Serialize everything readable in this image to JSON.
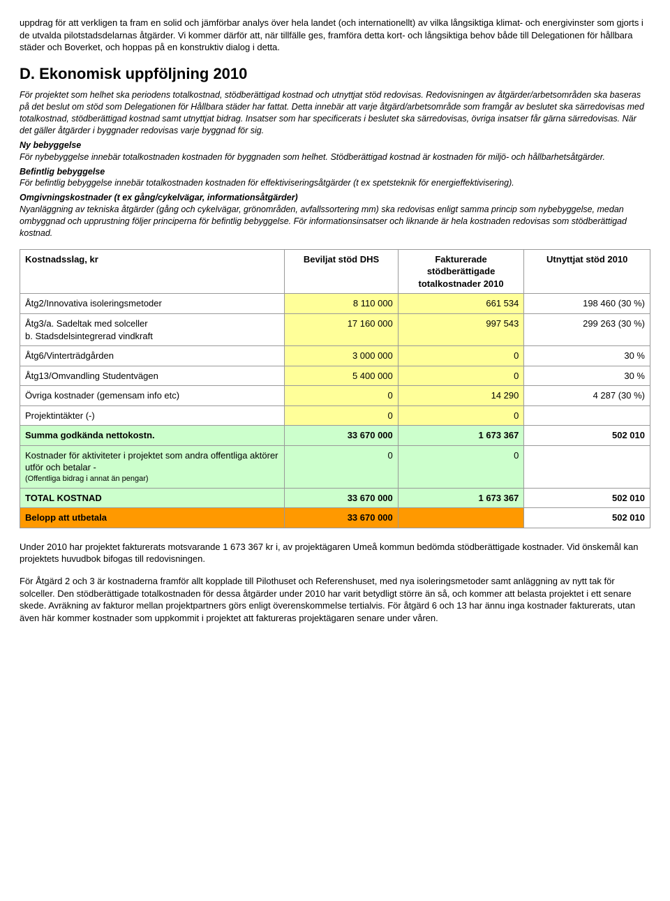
{
  "p1": "uppdrag för att verkligen ta fram en solid och jämförbar analys över hela landet (och internationellt) av vilka långsiktiga klimat- och energivinster som gjorts i de utvalda pilotstadsdelarnas åtgärder. Vi kommer därför att, när tillfälle ges, framföra detta kort- och långsiktiga behov både till Delegationen för hållbara städer och Boverket, och hoppas på en konstruktiv dialog i detta.",
  "section_title": "D. Ekonomisk uppföljning 2010",
  "i1": "För projektet som helhet ska periodens totalkostnad, stödberättigad kostnad och utnyttjat stöd redovisas. Redovisningen av åtgärder/arbetsområden ska baseras på det beslut om stöd som Delegationen för Hållbara städer har fattat. Detta innebär att varje åtgärd/arbetsområde som framgår av beslutet ska särredovisas med totalkostnad, stödberättigad kostnad samt utnyttjat bidrag. Insatser som har specificerats i beslutet ska särredovisas, övriga insatser får gärna särredovisas. När det gäller åtgärder i byggnader redovisas varje byggnad för sig.",
  "i2_h": "Ny bebyggelse",
  "i2": "För nybebyggelse innebär totalkostnaden kostnaden för byggnaden som helhet. Stödberättigad kostnad är kostnaden för miljö- och hållbarhetsåtgärder.",
  "i3_h": "Befintlig bebyggelse",
  "i3": "För befintlig bebyggelse innebär totalkostnaden kostnaden för effektiviseringsåtgärder (t ex spetsteknik för energieffektivisering).",
  "i4_h": "Omgivningskostnader (t ex gång/cykelvägar, informationsåtgärder)",
  "i4": "Nyanläggning av tekniska åtgärder (gång och cykelvägar, grönområden, avfallssortering mm) ska redovisas enligt samma princip som nybebyggelse, medan ombyggnad och upprustning följer principerna för befintlig bebyggelse. För informationsinsatser och liknande är hela kostnaden redovisas som stödberättigad kostnad.",
  "table": {
    "headers": {
      "c1": "Kostnadsslag, kr",
      "c2": "Beviljat stöd DHS",
      "c3": "Fakturerade stödberättigade totalkostnader 2010",
      "c4": "Utnyttjat stöd 2010"
    },
    "rows": [
      {
        "label": "Åtg2/Innovativa isoleringsmetoder",
        "dhs": "8 110 000",
        "fakt": "661 534",
        "stod": "198 460 (30 %)",
        "color": "yellow"
      },
      {
        "label": "Åtg3/a. Sadeltak med solceller\nb. Stadsdelsintegrerad vindkraft",
        "dhs": "17 160 000",
        "fakt": "997 543",
        "stod": "299 263 (30 %)",
        "color": "yellow"
      },
      {
        "label": "Åtg6/Vinterträdgården",
        "dhs": "3 000 000",
        "fakt": "0",
        "stod": "30 %",
        "color": "yellow"
      },
      {
        "label": "Åtg13/Omvandling Studentvägen",
        "dhs": "5 400 000",
        "fakt": "0",
        "stod": "30 %",
        "color": "yellow"
      },
      {
        "label": "Övriga kostnader (gemensam info etc)",
        "dhs": "0",
        "fakt": "14 290",
        "stod": "4 287 (30 %)",
        "color": "yellow"
      },
      {
        "label": "Projektintäkter (-)",
        "dhs": "0",
        "fakt": "0",
        "stod": "",
        "color": "yellow"
      }
    ],
    "summa": {
      "label": "Summa godkända nettokostn.",
      "dhs": "33 670 000",
      "fakt": "1 673 367",
      "stod": "502 010"
    },
    "kostnader": {
      "label_main": "Kostnader för aktiviteter i projektet som andra offentliga aktörer utför och betalar -",
      "label_sub": "(Offentliga bidrag i annat än pengar)",
      "dhs": "0",
      "fakt": "0",
      "stod": ""
    },
    "total": {
      "label": "TOTAL KOSTNAD",
      "dhs": "33 670 000",
      "fakt": "1 673 367",
      "stod": "502 010"
    },
    "belopp": {
      "label": "Belopp att utbetala",
      "dhs": "33 670 000",
      "fakt": "",
      "stod": "502 010"
    }
  },
  "p2": "Under 2010 har projektet fakturerats motsvarande 1 673 367 kr i, av projektägaren Umeå kommun bedömda stödberättigade kostnader. Vid önskemål kan projektets huvudbok bifogas till redovisningen.",
  "p3": "För Åtgärd 2 och 3 är kostnaderna framför allt kopplade till Pilothuset och Referenshuset, med nya isoleringsmetoder samt anläggning av nytt tak för solceller. Den stödberättigade totalkostnaden för dessa åtgärder under 2010 har varit betydligt större än så, och kommer att belasta projektet i ett senare skede. Avräkning av fakturor mellan projektpartners görs enligt överenskommelse tertialvis. För åtgärd 6 och 13 har ännu inga kostnader fakturerats, utan även här kommer kostnader som uppkommit i projektet att faktureras projektägaren senare under våren."
}
